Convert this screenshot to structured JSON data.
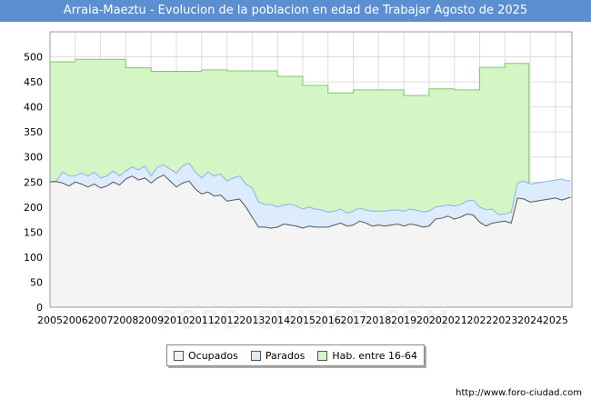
{
  "title": "Arraia-Maeztu - Evolucion de la poblacion en edad de Trabajar Agosto de 2025",
  "source": "http://www.foro-ciudad.com",
  "watermark": "FORO-CIUDAD.COM",
  "chart_data": {
    "type": "area",
    "title": "Arraia-Maeztu - Evolucion de la poblacion en edad de Trabajar Agosto de 2025",
    "xlabel": "",
    "ylabel": "",
    "xlim": [
      2005,
      2025.65
    ],
    "ylim": [
      0,
      550
    ],
    "yticks": [
      0,
      50,
      100,
      150,
      200,
      250,
      300,
      350,
      400,
      450,
      500
    ],
    "xticks": [
      "2005",
      "2006",
      "2007",
      "2008",
      "2009",
      "2010",
      "2011",
      "2012",
      "2013",
      "2014",
      "2015",
      "2016",
      "2017",
      "2018",
      "2019",
      "2020",
      "2021",
      "2022",
      "2023",
      "2024",
      "2025"
    ],
    "grid": true,
    "legend_position": "bottom-center",
    "colors": {
      "ocupados_fill": "#f4f4f4",
      "ocupados_line": "#555555",
      "parados_fill": "#dcecfc",
      "parados_line": "#8ab4e8",
      "hab_fill": "#d4f5c4",
      "hab_line": "#7acc66"
    },
    "series": [
      {
        "name": "Hab. entre 16-64",
        "key": "hab",
        "steps": [
          {
            "from": 2005,
            "to": 2006,
            "value": 490
          },
          {
            "from": 2006,
            "to": 2007,
            "value": 495
          },
          {
            "from": 2007,
            "to": 2008,
            "value": 495
          },
          {
            "from": 2008,
            "to": 2009,
            "value": 478
          },
          {
            "from": 2009,
            "to": 2010,
            "value": 471
          },
          {
            "from": 2010,
            "to": 2011,
            "value": 471
          },
          {
            "from": 2011,
            "to": 2012,
            "value": 474
          },
          {
            "from": 2012,
            "to": 2013,
            "value": 472
          },
          {
            "from": 2013,
            "to": 2014,
            "value": 472
          },
          {
            "from": 2014,
            "to": 2015,
            "value": 461
          },
          {
            "from": 2015,
            "to": 2016,
            "value": 443
          },
          {
            "from": 2016,
            "to": 2017,
            "value": 428
          },
          {
            "from": 2017,
            "to": 2018,
            "value": 434
          },
          {
            "from": 2018,
            "to": 2019,
            "value": 434
          },
          {
            "from": 2019,
            "to": 2020,
            "value": 423
          },
          {
            "from": 2020,
            "to": 2021,
            "value": 436
          },
          {
            "from": 2021,
            "to": 2022,
            "value": 434
          },
          {
            "from": 2022,
            "to": 2023,
            "value": 479
          },
          {
            "from": 2023,
            "to": 2023.95,
            "value": 487
          }
        ]
      },
      {
        "name": "Parados",
        "key": "parados",
        "x": [
          2005.0,
          2005.25,
          2005.5,
          2005.75,
          2006.0,
          2006.25,
          2006.5,
          2006.75,
          2007.0,
          2007.25,
          2007.5,
          2007.75,
          2008.0,
          2008.25,
          2008.5,
          2008.75,
          2009.0,
          2009.25,
          2009.5,
          2009.75,
          2010.0,
          2010.25,
          2010.5,
          2010.75,
          2011.0,
          2011.25,
          2011.5,
          2011.75,
          2012.0,
          2012.25,
          2012.5,
          2012.75,
          2013.0,
          2013.25,
          2013.5,
          2013.75,
          2014.0,
          2014.25,
          2014.5,
          2014.75,
          2015.0,
          2015.25,
          2015.5,
          2015.75,
          2016.0,
          2016.25,
          2016.5,
          2016.75,
          2017.0,
          2017.25,
          2017.5,
          2017.75,
          2018.0,
          2018.25,
          2018.5,
          2018.75,
          2019.0,
          2019.25,
          2019.5,
          2019.75,
          2020.0,
          2020.25,
          2020.5,
          2020.75,
          2021.0,
          2021.25,
          2021.5,
          2021.75,
          2022.0,
          2022.25,
          2022.5,
          2022.75,
          2023.0,
          2023.25,
          2023.5,
          2023.75,
          2024.0,
          2024.25,
          2024.5,
          2024.75,
          2025.0,
          2025.25,
          2025.5,
          2025.6
        ],
        "values": [
          250,
          252,
          270,
          262,
          262,
          268,
          262,
          270,
          258,
          262,
          272,
          262,
          272,
          280,
          274,
          282,
          262,
          280,
          284,
          276,
          268,
          282,
          288,
          270,
          258,
          270,
          262,
          266,
          252,
          258,
          262,
          246,
          238,
          210,
          205,
          205,
          200,
          204,
          206,
          202,
          196,
          200,
          196,
          194,
          190,
          192,
          196,
          188,
          192,
          198,
          194,
          192,
          192,
          192,
          194,
          194,
          192,
          196,
          194,
          190,
          192,
          200,
          202,
          204,
          202,
          205,
          212,
          214,
          200,
          195,
          196,
          185,
          186,
          190,
          248,
          252,
          246,
          248,
          250,
          252,
          254,
          256,
          252,
          254
        ]
      },
      {
        "name": "Ocupados",
        "key": "ocupados",
        "x": [
          2005.0,
          2005.25,
          2005.5,
          2005.75,
          2006.0,
          2006.25,
          2006.5,
          2006.75,
          2007.0,
          2007.25,
          2007.5,
          2007.75,
          2008.0,
          2008.25,
          2008.5,
          2008.75,
          2009.0,
          2009.25,
          2009.5,
          2009.75,
          2010.0,
          2010.25,
          2010.5,
          2010.75,
          2011.0,
          2011.25,
          2011.5,
          2011.75,
          2012.0,
          2012.25,
          2012.5,
          2012.75,
          2013.0,
          2013.25,
          2013.5,
          2013.75,
          2014.0,
          2014.25,
          2014.5,
          2014.75,
          2015.0,
          2015.25,
          2015.5,
          2015.75,
          2016.0,
          2016.25,
          2016.5,
          2016.75,
          2017.0,
          2017.25,
          2017.5,
          2017.75,
          2018.0,
          2018.25,
          2018.5,
          2018.75,
          2019.0,
          2019.25,
          2019.5,
          2019.75,
          2020.0,
          2020.25,
          2020.5,
          2020.75,
          2021.0,
          2021.25,
          2021.5,
          2021.75,
          2022.0,
          2022.25,
          2022.5,
          2022.75,
          2023.0,
          2023.25,
          2023.5,
          2023.75,
          2024.0,
          2024.25,
          2024.5,
          2024.75,
          2025.0,
          2025.25,
          2025.5,
          2025.6
        ],
        "values": [
          250,
          251,
          248,
          242,
          250,
          246,
          240,
          246,
          238,
          242,
          250,
          244,
          256,
          262,
          254,
          258,
          248,
          258,
          264,
          252,
          240,
          248,
          252,
          236,
          226,
          230,
          222,
          224,
          212,
          214,
          216,
          200,
          180,
          160,
          160,
          158,
          160,
          166,
          164,
          162,
          158,
          162,
          160,
          160,
          160,
          164,
          168,
          162,
          164,
          172,
          168,
          162,
          164,
          162,
          164,
          166,
          162,
          166,
          164,
          160,
          162,
          176,
          178,
          182,
          176,
          180,
          186,
          184,
          170,
          162,
          168,
          170,
          172,
          168,
          218,
          216,
          210,
          212,
          214,
          216,
          218,
          214,
          218,
          220
        ]
      }
    ]
  },
  "legend": {
    "ocupados": "Ocupados",
    "parados": "Parados",
    "hab": "Hab. entre 16-64"
  }
}
